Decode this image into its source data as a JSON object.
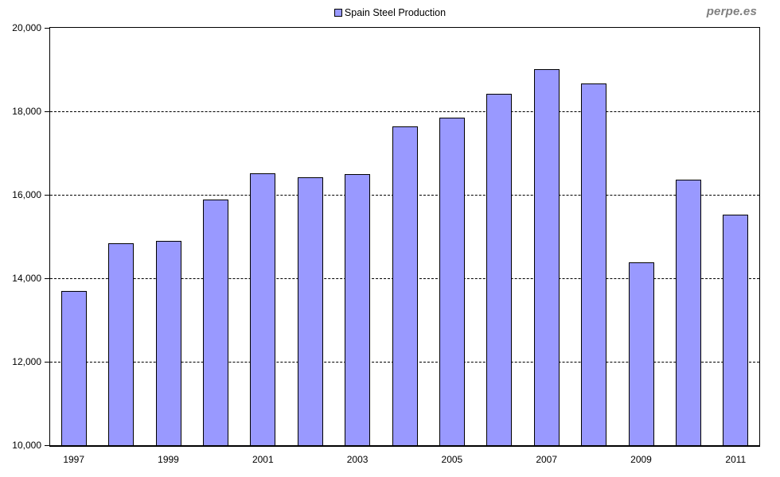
{
  "page": {
    "watermark": "perpe.es"
  },
  "chart_data": {
    "type": "bar",
    "title": "",
    "legend": [
      "Spain Steel Production"
    ],
    "legend_position": "top-center",
    "categories": [
      "1997",
      "1998",
      "1999",
      "2000",
      "2001",
      "2002",
      "2003",
      "2004",
      "2005",
      "2006",
      "2007",
      "2008",
      "2009",
      "2010",
      "2011"
    ],
    "series": [
      {
        "name": "Spain Steel Production",
        "values": [
          13683,
          14827,
          14882,
          15874,
          16504,
          16408,
          16472,
          17621,
          17826,
          18391,
          18999,
          18640,
          14358,
          16343,
          15504
        ]
      }
    ],
    "xlabel": "",
    "ylabel": "",
    "ylim": [
      10000,
      20000
    ],
    "y_ticks": [
      10000,
      12000,
      14000,
      16000,
      18000,
      20000
    ],
    "y_gridlines": [
      12000,
      14000,
      16000,
      18000
    ],
    "x_tick_labels": [
      "1997",
      "1999",
      "2001",
      "2003",
      "2005",
      "2007",
      "2009",
      "2011"
    ],
    "grid": "horizontal-dashed",
    "bar_color": "#9999FF",
    "bar_border_color": "#000000",
    "axis_color": "#000000",
    "watermark_color": "#808080"
  }
}
